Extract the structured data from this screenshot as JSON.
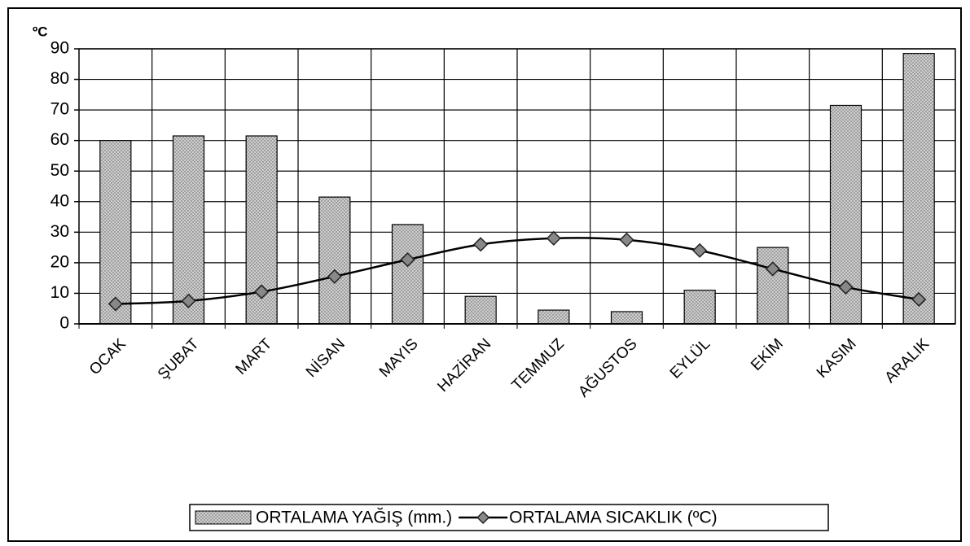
{
  "chart_data": {
    "type": "bar",
    "y_label": "ºC",
    "categories": [
      "OCAK",
      "ŞUBAT",
      "MART",
      "NİSAN",
      "MAYIS",
      "HAZİRAN",
      "TEMMUZ",
      "AĞUSTOS",
      "EYLÜL",
      "EKİM",
      "KASIM",
      "ARALIK"
    ],
    "series": [
      {
        "name": "ORTALAMA YAĞIŞ (mm.)",
        "type": "bar",
        "color": "#cfcfcf",
        "values": [
          60,
          61.5,
          61.5,
          41.5,
          32.5,
          9,
          4.5,
          4,
          11,
          25,
          71.5,
          88.5
        ]
      },
      {
        "name": "ORTALAMA SICAKLIK (ºC)",
        "type": "line",
        "color": "#000000",
        "values": [
          6.5,
          7.5,
          10.5,
          15.5,
          21,
          26,
          28,
          27.5,
          24,
          18,
          12,
          8
        ]
      }
    ],
    "ylim": [
      0,
      90
    ],
    "yticks": [
      0,
      10,
      20,
      30,
      40,
      50,
      60,
      70,
      80,
      90
    ],
    "grid": true
  }
}
